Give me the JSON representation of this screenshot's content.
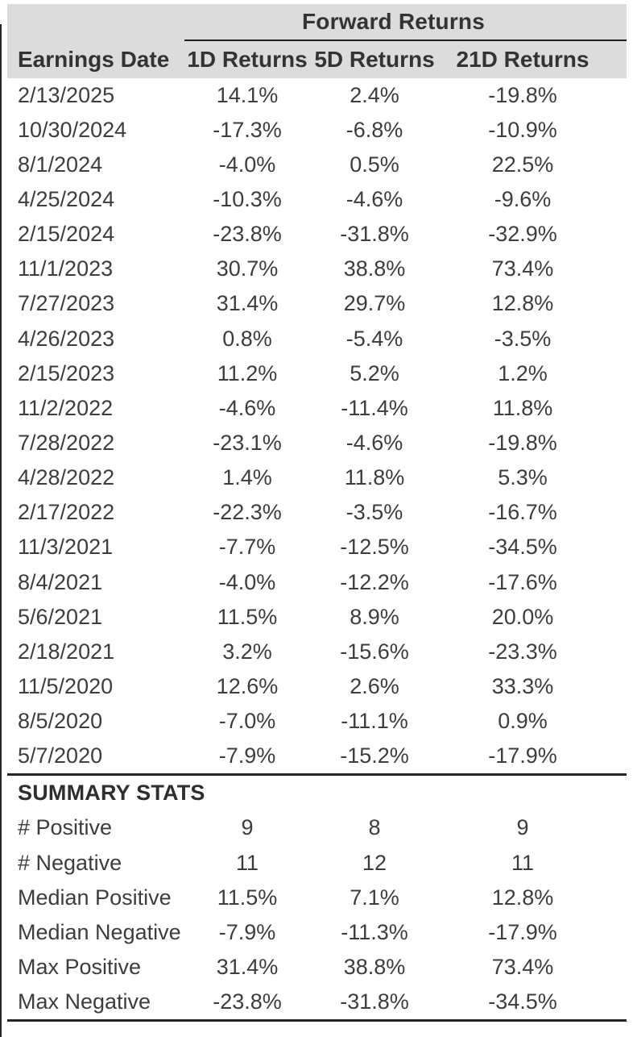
{
  "colors": {
    "header_bg": "#dcdcdc",
    "text": "#3d3d3d",
    "rule": "#262626"
  },
  "chart_data": {
    "type": "table",
    "title": "Forward Returns",
    "columns": [
      "Earnings Date",
      "1D Returns",
      "5D Returns",
      "21D Returns"
    ],
    "rows": [
      [
        "2/13/2025",
        "14.1%",
        "2.4%",
        "-19.8%"
      ],
      [
        "10/30/2024",
        "-17.3%",
        "-6.8%",
        "-10.9%"
      ],
      [
        "8/1/2024",
        "-4.0%",
        "0.5%",
        "22.5%"
      ],
      [
        "4/25/2024",
        "-10.3%",
        "-4.6%",
        "-9.6%"
      ],
      [
        "2/15/2024",
        "-23.8%",
        "-31.8%",
        "-32.9%"
      ],
      [
        "11/1/2023",
        "30.7%",
        "38.8%",
        "73.4%"
      ],
      [
        "7/27/2023",
        "31.4%",
        "29.7%",
        "12.8%"
      ],
      [
        "4/26/2023",
        "0.8%",
        "-5.4%",
        "-3.5%"
      ],
      [
        "2/15/2023",
        "11.2%",
        "5.2%",
        "1.2%"
      ],
      [
        "11/2/2022",
        "-4.6%",
        "-11.4%",
        "11.8%"
      ],
      [
        "7/28/2022",
        "-23.1%",
        "-4.6%",
        "-19.8%"
      ],
      [
        "4/28/2022",
        "1.4%",
        "11.8%",
        "5.3%"
      ],
      [
        "2/17/2022",
        "-22.3%",
        "-3.5%",
        "-16.7%"
      ],
      [
        "11/3/2021",
        "-7.7%",
        "-12.5%",
        "-34.5%"
      ],
      [
        "8/4/2021",
        "-4.0%",
        "-12.2%",
        "-17.6%"
      ],
      [
        "5/6/2021",
        "11.5%",
        "8.9%",
        "20.0%"
      ],
      [
        "2/18/2021",
        "3.2%",
        "-15.6%",
        "-23.3%"
      ],
      [
        "11/5/2020",
        "12.6%",
        "2.6%",
        "33.3%"
      ],
      [
        "8/5/2020",
        "-7.0%",
        "-11.1%",
        "0.9%"
      ],
      [
        "5/7/2020",
        "-7.9%",
        "-15.2%",
        "-17.9%"
      ]
    ],
    "summary_title": "SUMMARY STATS",
    "summary_rows": [
      [
        "# Positive",
        "9",
        "8",
        "9"
      ],
      [
        "# Negative",
        "11",
        "12",
        "11"
      ],
      [
        "Median Positive",
        "11.5%",
        "7.1%",
        "12.8%"
      ],
      [
        "Median Negative",
        "-7.9%",
        "-11.3%",
        "-17.9%"
      ],
      [
        "Max Positive",
        "31.4%",
        "38.8%",
        "73.4%"
      ],
      [
        "Max Negative",
        "-23.8%",
        "-31.8%",
        "-34.5%"
      ]
    ]
  }
}
